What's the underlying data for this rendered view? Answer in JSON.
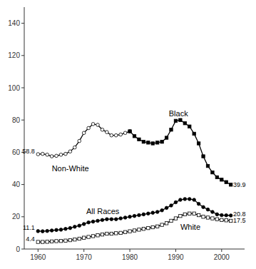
{
  "chart_data": {
    "type": "line",
    "xlim": [
      1957,
      2005
    ],
    "ylim": [
      0,
      150
    ],
    "xticks": [
      1960,
      1970,
      1980,
      1990,
      2000
    ],
    "yticks": [
      0,
      20,
      40,
      60,
      80,
      100,
      120,
      140
    ],
    "grid": false,
    "series": [
      {
        "color": "#000000",
        "marker": "circle-open",
        "x": [
          1960,
          1961,
          1962,
          1963,
          1964,
          1965,
          1966,
          1967,
          1968,
          1969,
          1970,
          1971,
          1972,
          1973,
          1974,
          1975,
          1976,
          1977,
          1978,
          1979,
          1980
        ],
        "values": [
          58.8,
          59.0,
          58.5,
          57.5,
          57.8,
          58.5,
          59.0,
          60.5,
          63.0,
          67.0,
          72.0,
          75.0,
          77.5,
          77.0,
          74.0,
          72.5,
          70.5,
          70.5,
          71.0,
          72.0,
          73.0
        ]
      },
      {
        "color": "#000000",
        "marker": "square",
        "x": [
          1980,
          1981,
          1982,
          1983,
          1984,
          1985,
          1986,
          1987,
          1988,
          1989,
          1990,
          1991,
          1992,
          1993,
          1994,
          1995,
          1996,
          1997,
          1998,
          1999,
          2000,
          2001,
          2002
        ],
        "values": [
          73.0,
          70.0,
          68.0,
          66.5,
          66.0,
          65.5,
          66.0,
          66.5,
          69.0,
          74.0,
          79.5,
          80.0,
          78.0,
          76.0,
          71.5,
          65.5,
          57.5,
          51.5,
          47.5,
          44.5,
          43.0,
          41.5,
          39.9
        ]
      },
      {
        "color": "#000000",
        "marker": "circle",
        "x": [
          1960,
          1961,
          1962,
          1963,
          1964,
          1965,
          1966,
          1967,
          1968,
          1969,
          1970,
          1971,
          1972,
          1973,
          1974,
          1975,
          1976,
          1977,
          1978,
          1979,
          1980,
          1981,
          1982,
          1983,
          1984,
          1985,
          1986,
          1987,
          1988,
          1989,
          1990,
          1991,
          1992,
          1993,
          1994,
          1995,
          1996,
          1997,
          1998,
          1999,
          2000,
          2001,
          2002
        ],
        "values": [
          11.1,
          11.0,
          11.2,
          11.5,
          11.8,
          12.0,
          12.5,
          13.0,
          13.8,
          14.5,
          15.5,
          16.5,
          17.0,
          17.5,
          18.0,
          18.5,
          18.5,
          18.5,
          19.0,
          19.5,
          20.0,
          20.5,
          21.0,
          21.5,
          22.0,
          22.5,
          23.0,
          24.0,
          25.5,
          27.0,
          29.0,
          30.5,
          31.0,
          31.0,
          30.5,
          28.0,
          26.0,
          24.5,
          23.0,
          21.5,
          21.0,
          20.9,
          20.8
        ]
      },
      {
        "color": "#000000",
        "marker": "square-open",
        "x": [
          1960,
          1961,
          1962,
          1963,
          1964,
          1965,
          1966,
          1967,
          1968,
          1969,
          1970,
          1971,
          1972,
          1973,
          1974,
          1975,
          1976,
          1977,
          1978,
          1979,
          1980,
          1981,
          1982,
          1983,
          1984,
          1985,
          1986,
          1987,
          1988,
          1989,
          1990,
          1991,
          1992,
          1993,
          1994,
          1995,
          1996,
          1997,
          1998,
          1999,
          2000,
          2001,
          2002
        ],
        "values": [
          4.4,
          4.4,
          4.5,
          4.7,
          4.9,
          5.0,
          5.2,
          5.5,
          5.9,
          6.4,
          7.0,
          7.5,
          8.0,
          8.5,
          9.0,
          9.5,
          9.5,
          9.8,
          10.0,
          10.5,
          11.0,
          11.5,
          12.0,
          12.5,
          13.0,
          13.5,
          14.0,
          15.0,
          16.0,
          17.5,
          19.0,
          20.5,
          21.5,
          22.0,
          22.0,
          21.0,
          20.0,
          19.5,
          19.0,
          18.5,
          18.0,
          17.8,
          17.5
        ]
      }
    ],
    "annotations": [
      {
        "text": "58.8",
        "x": 1959.3,
        "y": 60.8
      },
      {
        "text": "11.1",
        "x": 1959.3,
        "y": 13.2
      },
      {
        "text": "4.4",
        "x": 1959.3,
        "y": 6.2
      },
      {
        "text": "39.9",
        "x": 2002.5,
        "y": 39.9
      },
      {
        "text": "20.8",
        "x": 2002.5,
        "y": 21.5
      },
      {
        "text": "17.5",
        "x": 2002.5,
        "y": 17.5
      },
      {
        "text": "Non-White",
        "x": 1963,
        "y": 50
      },
      {
        "text": "Black",
        "x": 1988.5,
        "y": 84
      },
      {
        "text": "All Races",
        "x": 1970.5,
        "y": 23.5
      },
      {
        "text": "White",
        "x": 1991,
        "y": 13.5
      }
    ]
  }
}
